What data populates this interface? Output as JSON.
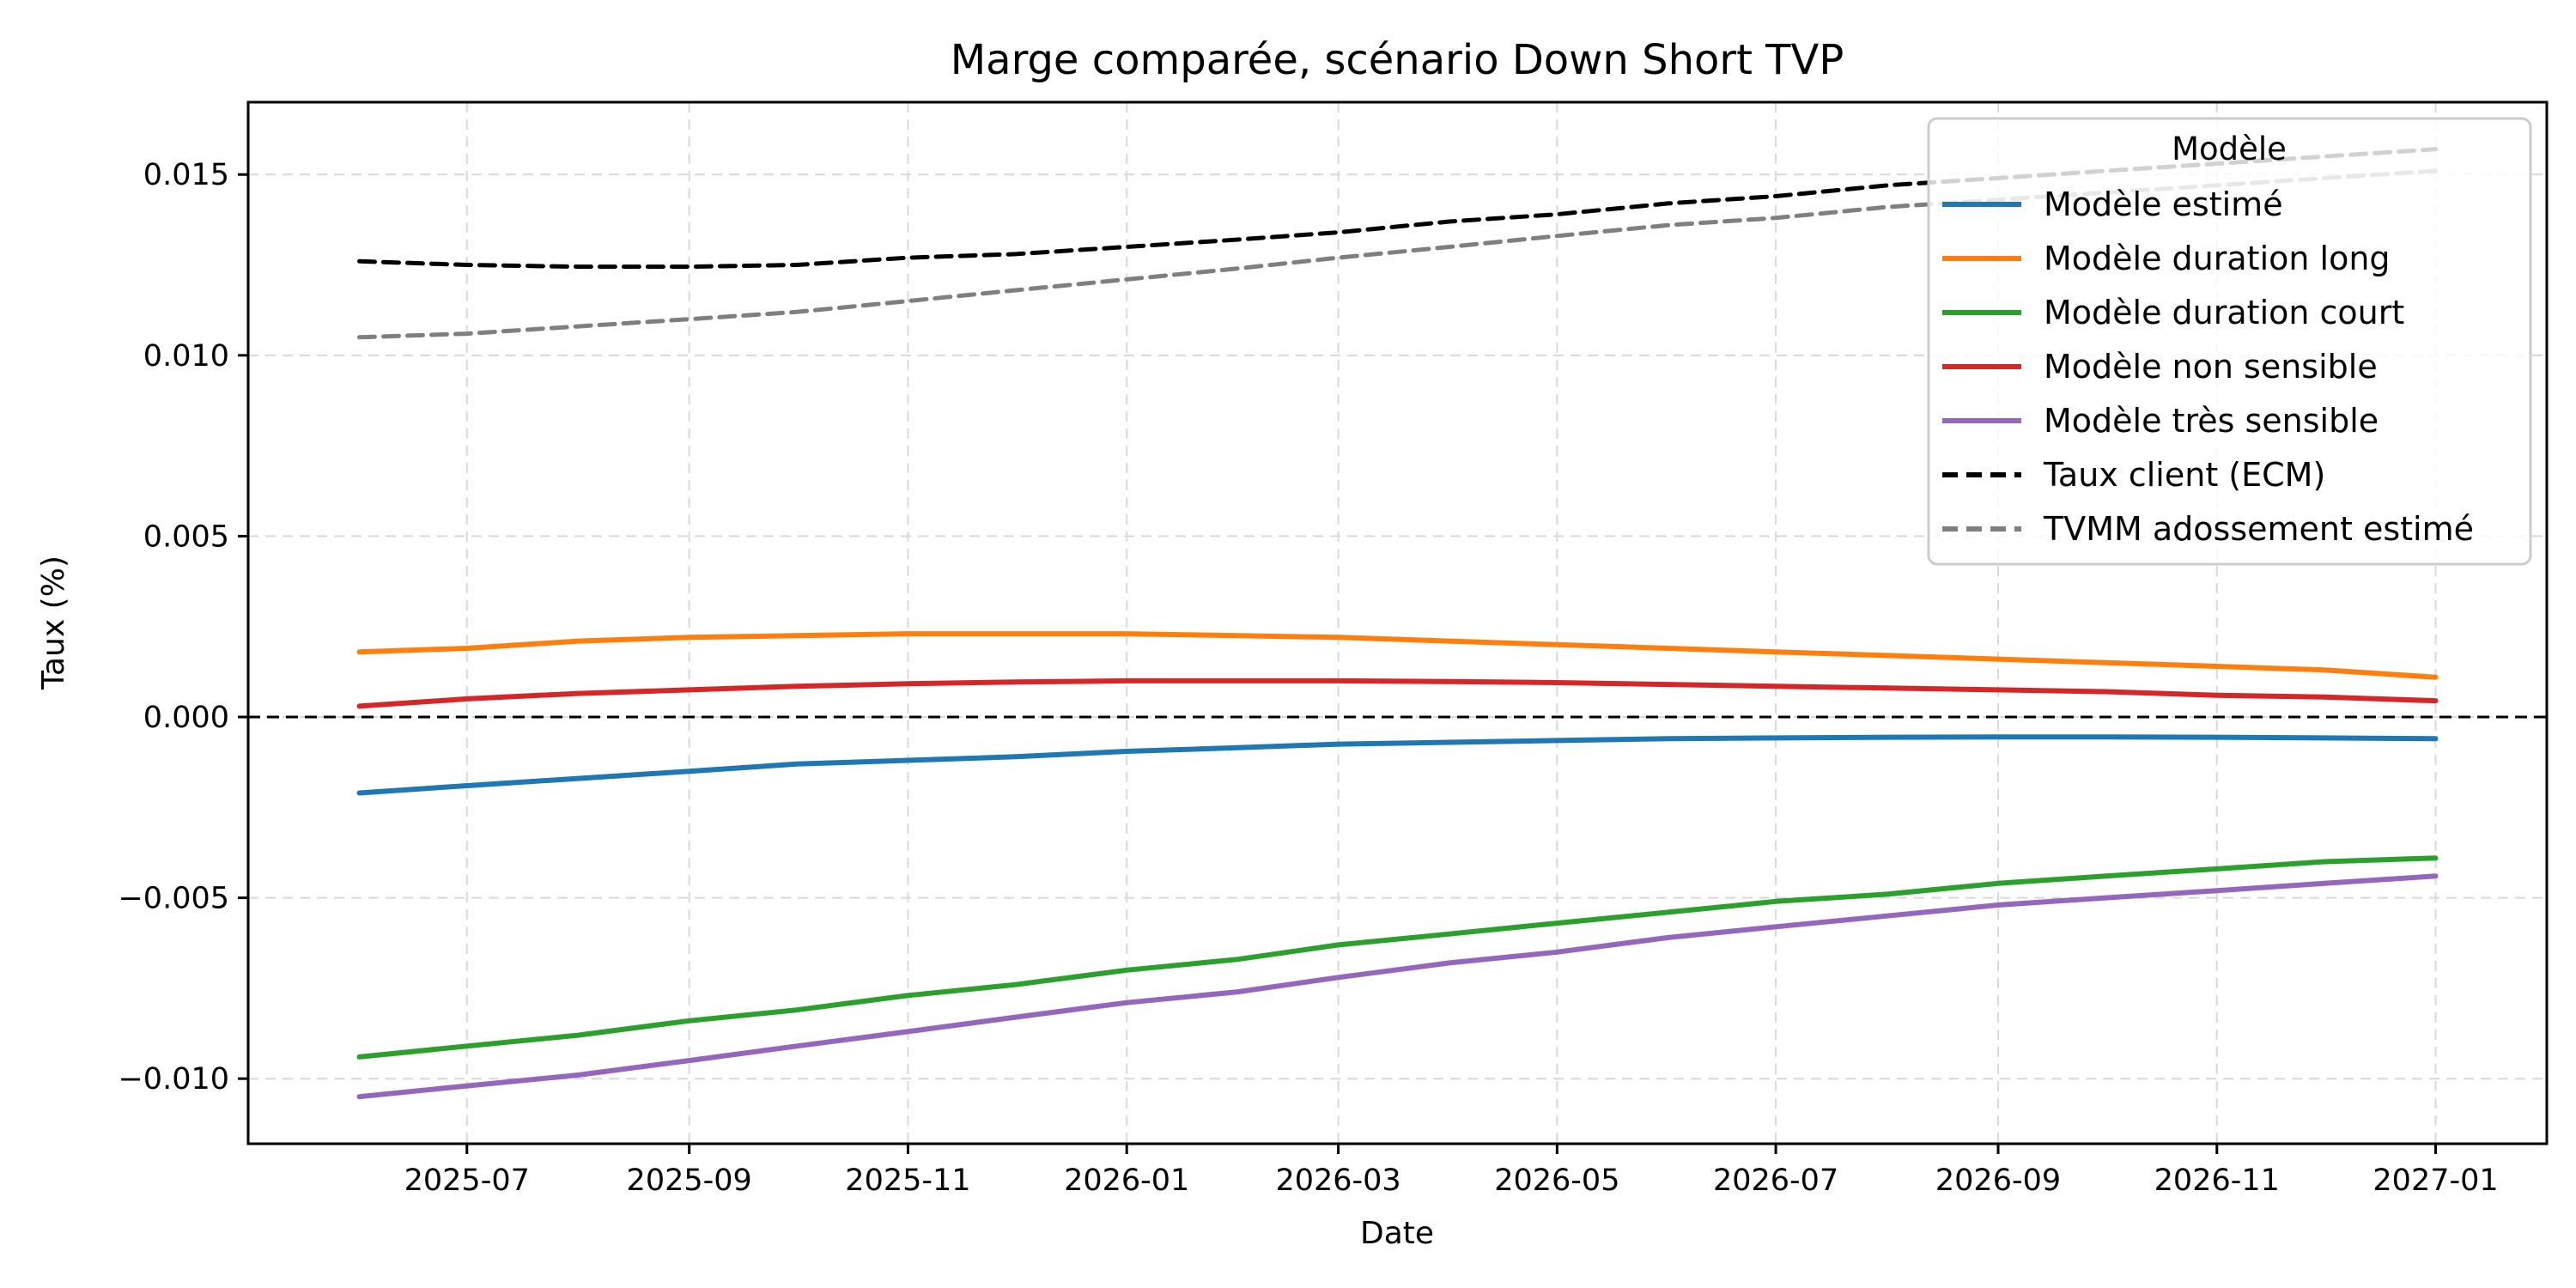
{
  "chart_data": {
    "type": "line",
    "title": "Marge comparée, scénario Down Short TVP",
    "xlabel": "Date",
    "ylabel": "Taux (%)",
    "xlim": [
      "2025-05-01",
      "2027-02-01"
    ],
    "ylim": [
      -0.0118,
      0.017
    ],
    "x_ticks": [
      "2025-07",
      "2025-09",
      "2025-11",
      "2026-01",
      "2026-03",
      "2026-05",
      "2026-07",
      "2026-09",
      "2026-11",
      "2027-01"
    ],
    "y_ticks": [
      0.015,
      0.01,
      0.005,
      0.0,
      -0.005,
      -0.01
    ],
    "y_tick_labels": [
      "0.015",
      "0.010",
      "0.005",
      "0.000",
      "−0.005",
      "−0.010"
    ],
    "grid": true,
    "zero_line": {
      "y": 0,
      "color": "#000000",
      "dashed": true
    },
    "legend": {
      "title": "Modèle",
      "placement": "top-right"
    },
    "x": [
      "2025-06-01",
      "2025-07-01",
      "2025-08-01",
      "2025-09-01",
      "2025-10-01",
      "2025-11-01",
      "2025-12-01",
      "2026-01-01",
      "2026-02-01",
      "2026-03-01",
      "2026-04-01",
      "2026-05-01",
      "2026-06-01",
      "2026-07-01",
      "2026-08-01",
      "2026-09-01",
      "2026-10-01",
      "2026-11-01",
      "2026-12-01",
      "2027-01-01"
    ],
    "series": [
      {
        "name": "Modèle estimé",
        "color": "#1f77b4",
        "dashed": false,
        "values": [
          -0.0021,
          -0.0019,
          -0.0017,
          -0.0015,
          -0.0013,
          -0.0012,
          -0.0011,
          -0.00095,
          -0.00085,
          -0.00075,
          -0.0007,
          -0.00065,
          -0.0006,
          -0.00058,
          -0.00056,
          -0.00055,
          -0.00055,
          -0.00056,
          -0.00058,
          -0.0006
        ]
      },
      {
        "name": "Modèle duration long",
        "color": "#ff7f0e",
        "dashed": false,
        "values": [
          0.0018,
          0.0019,
          0.0021,
          0.0022,
          0.00225,
          0.0023,
          0.0023,
          0.0023,
          0.00225,
          0.0022,
          0.0021,
          0.002,
          0.0019,
          0.0018,
          0.0017,
          0.0016,
          0.0015,
          0.0014,
          0.0013,
          0.0011
        ]
      },
      {
        "name": "Modèle duration court",
        "color": "#2ca02c",
        "dashed": false,
        "values": [
          -0.0094,
          -0.0091,
          -0.0088,
          -0.0084,
          -0.0081,
          -0.0077,
          -0.0074,
          -0.007,
          -0.0067,
          -0.0063,
          -0.006,
          -0.0057,
          -0.0054,
          -0.0051,
          -0.0049,
          -0.0046,
          -0.0044,
          -0.0042,
          -0.004,
          -0.0039
        ]
      },
      {
        "name": "Modèle non sensible",
        "color": "#d62728",
        "dashed": false,
        "values": [
          0.0003,
          0.0005,
          0.00065,
          0.00075,
          0.00085,
          0.00092,
          0.00097,
          0.001,
          0.001,
          0.001,
          0.00098,
          0.00095,
          0.0009,
          0.00085,
          0.0008,
          0.00075,
          0.0007,
          0.0006,
          0.00055,
          0.00045
        ]
      },
      {
        "name": "Modèle très sensible",
        "color": "#9467bd",
        "dashed": false,
        "values": [
          -0.0105,
          -0.0102,
          -0.0099,
          -0.0095,
          -0.0091,
          -0.0087,
          -0.0083,
          -0.0079,
          -0.0076,
          -0.0072,
          -0.0068,
          -0.0065,
          -0.0061,
          -0.0058,
          -0.0055,
          -0.0052,
          -0.005,
          -0.0048,
          -0.0046,
          -0.0044
        ]
      },
      {
        "name": "Taux client (ECM)",
        "color": "#000000",
        "dashed": true,
        "values": [
          0.0126,
          0.0125,
          0.01245,
          0.01245,
          0.0125,
          0.0127,
          0.0128,
          0.013,
          0.0132,
          0.0134,
          0.0137,
          0.0139,
          0.0142,
          0.0144,
          0.0147,
          0.0149,
          0.0151,
          0.0153,
          0.0155,
          0.0157
        ]
      },
      {
        "name": "TVMM adossement estimé",
        "color": "#7f7f7f",
        "dashed": true,
        "values": [
          0.0105,
          0.0106,
          0.0108,
          0.011,
          0.0112,
          0.0115,
          0.0118,
          0.0121,
          0.0124,
          0.0127,
          0.013,
          0.0133,
          0.0136,
          0.0138,
          0.0141,
          0.0143,
          0.0145,
          0.0147,
          0.0149,
          0.0151
        ]
      }
    ]
  }
}
